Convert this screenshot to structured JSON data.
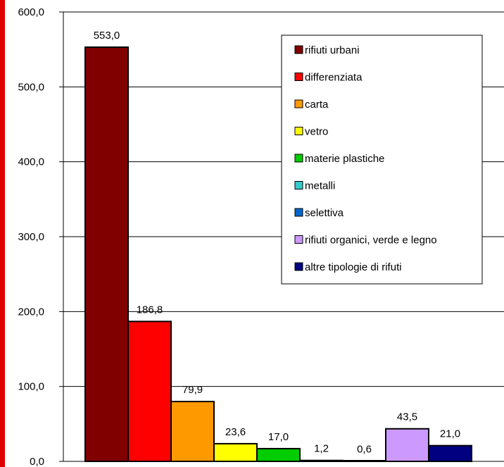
{
  "chart_data": {
    "type": "bar",
    "categories": [
      "rifiuti urbani",
      "differenziata",
      "carta",
      "vetro",
      "materie plastiche",
      "metalli",
      "selettiva",
      "rifiuti organici, verde e legno",
      "altre tipologie di rifuti"
    ],
    "values": [
      553.0,
      186.8,
      79.9,
      23.6,
      17.0,
      1.2,
      0.6,
      43.5,
      21.0
    ],
    "value_labels": [
      "553,0",
      "186,8",
      "79,9",
      "23,6",
      "17,0",
      "1,2",
      "0,6",
      "43,5",
      "21,0"
    ],
    "colors": [
      "#800000",
      "#ff0000",
      "#ff9900",
      "#ffff00",
      "#00cc00",
      "#33cccc",
      "#0066cc",
      "#cc99ff",
      "#000080"
    ],
    "ylim": [
      0,
      600
    ],
    "yticks": [
      0,
      100,
      200,
      300,
      400,
      500,
      600
    ],
    "ytick_labels": [
      "0,0",
      "100,0",
      "200,0",
      "300,0",
      "400,0",
      "500,0",
      "600,0"
    ],
    "grid": true,
    "legend_position": "top-right",
    "title": "",
    "xlabel": "",
    "ylabel": ""
  }
}
